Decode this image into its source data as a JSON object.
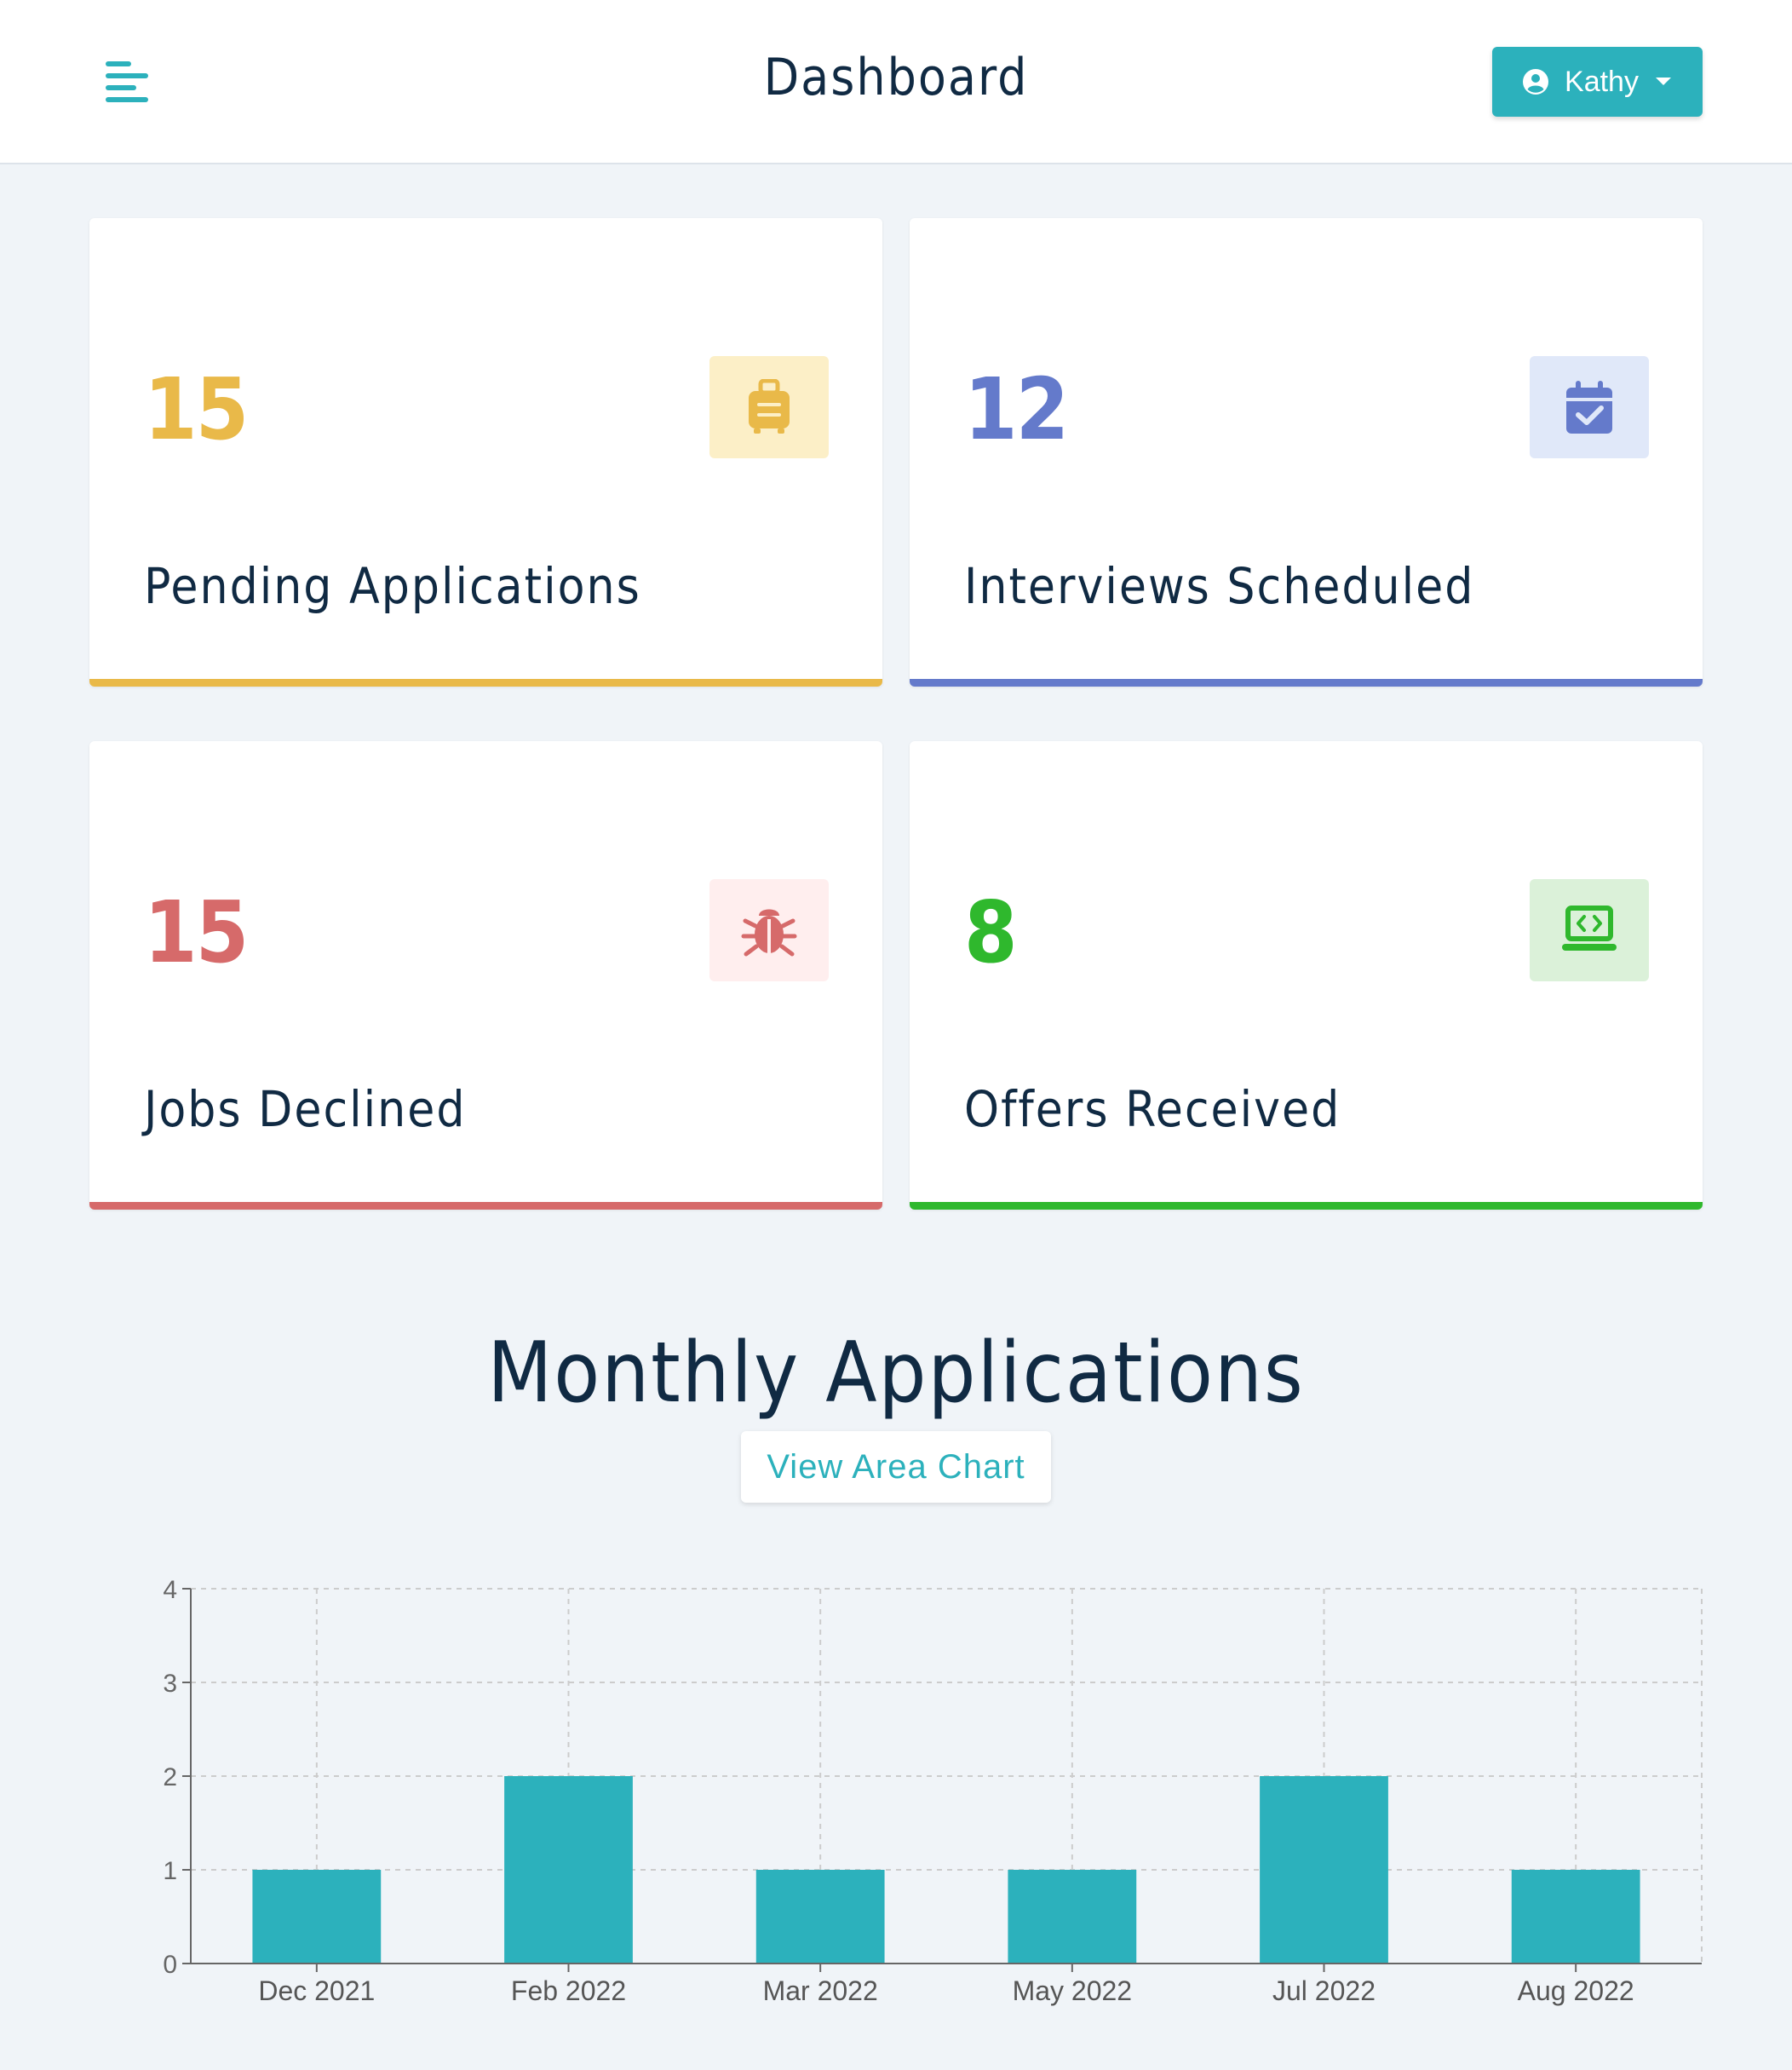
{
  "header": {
    "title": "Dashboard",
    "user_name": "Kathy",
    "menu_icon": "align-left-icon",
    "user_icon": "user-circle-icon",
    "caret_icon": "caret-down-icon",
    "accent": "#2cb1bc"
  },
  "stats": [
    {
      "count": "15",
      "label": "Pending Applications",
      "icon": "suitcase-icon",
      "color": "#e9b949",
      "bg": "#fcefc7"
    },
    {
      "count": "12",
      "label": "Interviews Scheduled",
      "icon": "calendar-check-icon",
      "color": "#647acb",
      "bg": "#e0e8f9"
    },
    {
      "count": "15",
      "label": "Jobs Declined",
      "icon": "bug-icon",
      "color": "#d66a6a",
      "bg": "#ffeeee"
    },
    {
      "count": "8",
      "label": "Offers Received",
      "icon": "laptop-code-icon",
      "color": "#2fb82d",
      "bg": "#dbf1d9"
    }
  ],
  "chart_section": {
    "title": "Monthly Applications",
    "toggle_label": "View Area Chart"
  },
  "chart_data": {
    "type": "bar",
    "categories": [
      "Dec 2021",
      "Feb 2022",
      "Mar 2022",
      "May 2022",
      "Jul 2022",
      "Aug 2022"
    ],
    "values": [
      1,
      2,
      1,
      1,
      2,
      1
    ],
    "ylim": [
      0,
      4
    ],
    "yticks": [
      0,
      1,
      2,
      3,
      4
    ],
    "grid": true,
    "bar_color": "#2cb1bc"
  }
}
